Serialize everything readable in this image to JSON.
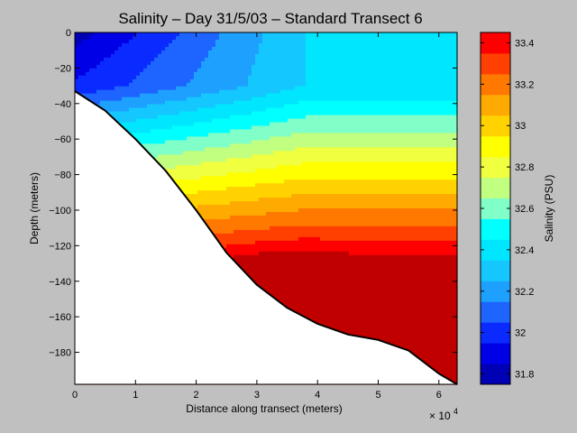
{
  "chart_data": {
    "type": "heatmap",
    "title": "Salinity – Day 31/5/03 – Standard Transect 6",
    "xlabel": "Distance along transect (meters)",
    "ylabel": "Depth (meters)",
    "x_multiplier": "× 10",
    "x_multiplier_exp": "4",
    "xlim": [
      0,
      63000
    ],
    "ylim": [
      -198,
      0
    ],
    "x_ticks": [
      0,
      10000,
      20000,
      30000,
      40000,
      50000,
      60000
    ],
    "x_tick_labels": [
      "0",
      "1",
      "2",
      "3",
      "4",
      "5",
      "6"
    ],
    "y_ticks": [
      0,
      -20,
      -40,
      -60,
      -80,
      -100,
      -120,
      -140,
      -160,
      -180
    ],
    "y_tick_labels": [
      "0",
      "−20",
      "−40",
      "−60",
      "−80",
      "−100",
      "−120",
      "−140",
      "−160",
      "−180"
    ],
    "colorbar": {
      "label": "Salinity (PSU)",
      "range": [
        31.75,
        33.45
      ],
      "ticks": [
        31.8,
        32.0,
        32.2,
        32.4,
        32.6,
        32.8,
        33.0,
        33.2,
        33.4
      ],
      "tick_labels": [
        "31.8",
        "32",
        "32.2",
        "32.4",
        "32.6",
        "32.8",
        "33",
        "33.2",
        "33.4"
      ],
      "levels": [
        31.75,
        31.85,
        31.95,
        32.05,
        32.15,
        32.25,
        32.35,
        32.45,
        32.55,
        32.65,
        32.75,
        32.85,
        32.95,
        33.05,
        33.15,
        33.25,
        33.35,
        33.45
      ],
      "colors": [
        "#0000b4",
        "#0000e6",
        "#0a2aff",
        "#1e64ff",
        "#1ea0ff",
        "#14c8ff",
        "#00e6ff",
        "#00ffff",
        "#80ffc8",
        "#c0ff80",
        "#f0ff40",
        "#ffff00",
        "#ffd200",
        "#ffaa00",
        "#ff7800",
        "#ff4000",
        "#ff0000",
        "#c00000"
      ]
    },
    "bottom_profile": [
      [
        0,
        -33
      ],
      [
        5000,
        -44
      ],
      [
        10000,
        -60
      ],
      [
        15000,
        -78
      ],
      [
        20000,
        -100
      ],
      [
        25000,
        -124
      ],
      [
        30000,
        -142
      ],
      [
        35000,
        -155
      ],
      [
        40000,
        -164
      ],
      [
        45000,
        -170
      ],
      [
        50000,
        -173
      ],
      [
        55000,
        -179
      ],
      [
        60000,
        -192
      ],
      [
        63000,
        -198
      ]
    ]
  }
}
